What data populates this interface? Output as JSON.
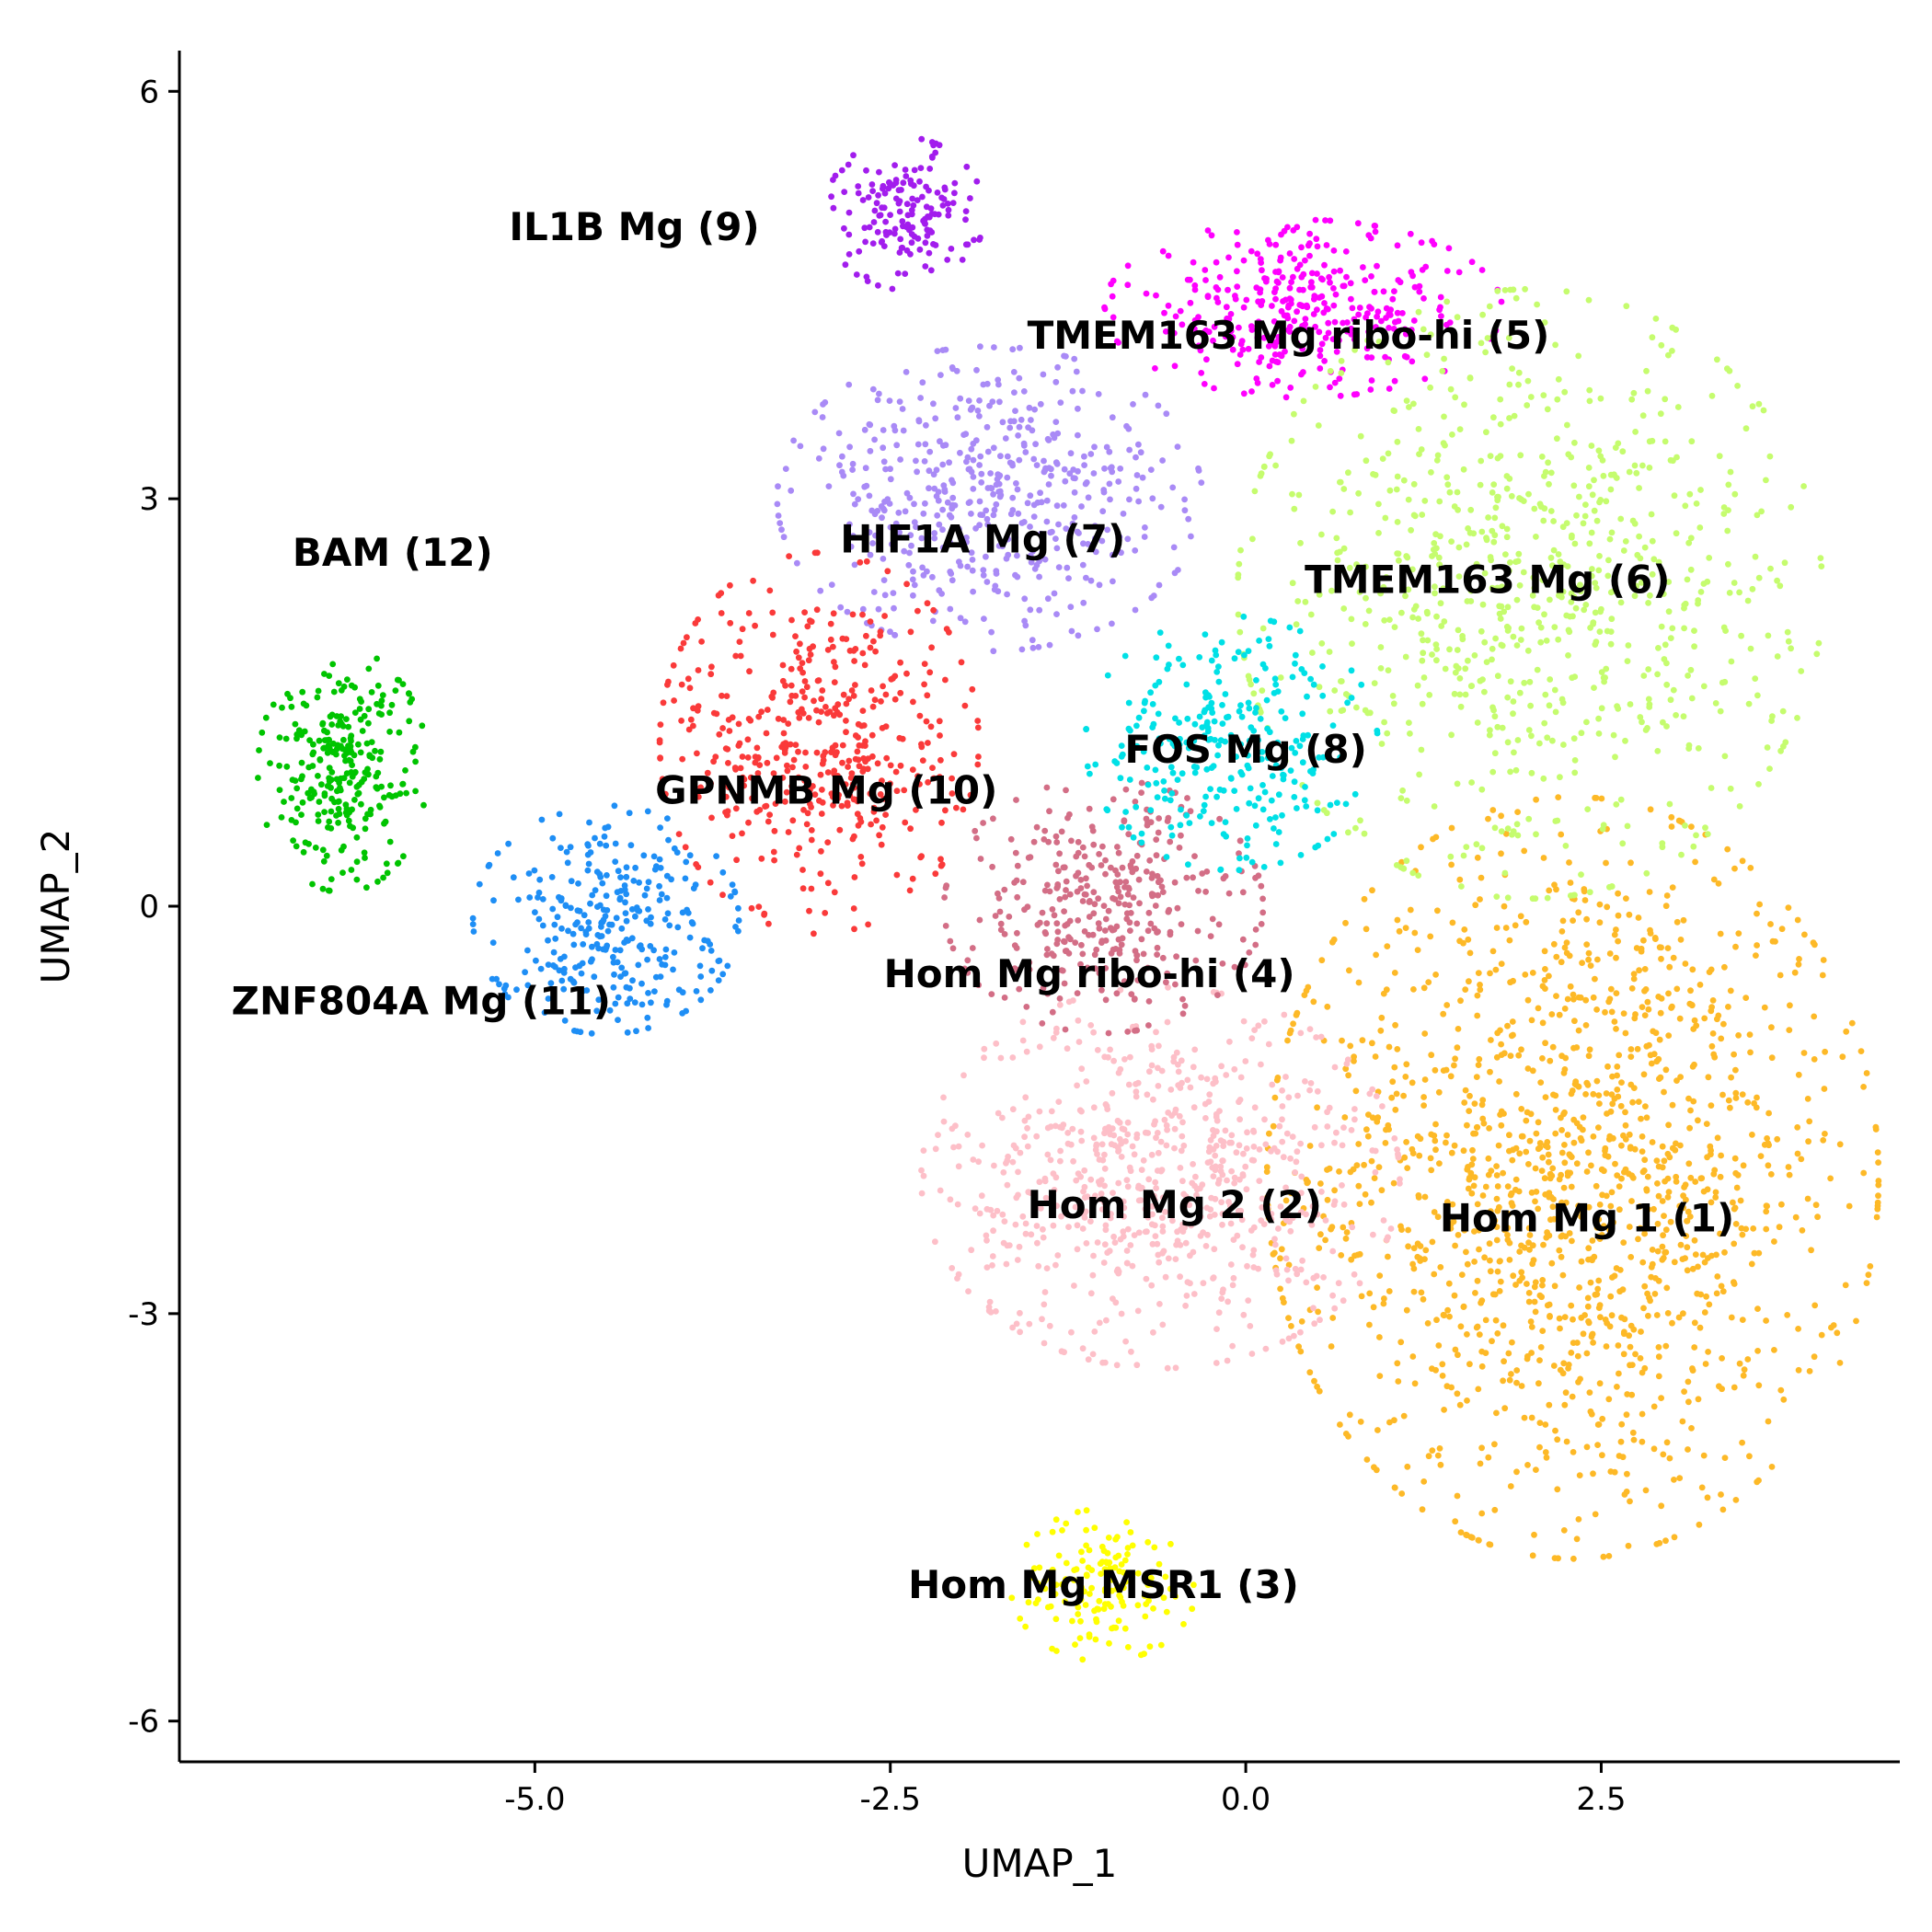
{
  "chart_data": {
    "type": "scatter",
    "xlabel": "UMAP_1",
    "ylabel": "UMAP_2",
    "xlim": [
      -7.5,
      4.6
    ],
    "ylim": [
      -6.3,
      6.3
    ],
    "x_ticks": [
      {
        "value": -5.0,
        "label": "-5.0"
      },
      {
        "value": -2.5,
        "label": "-2.5"
      },
      {
        "value": 0.0,
        "label": "0.0"
      },
      {
        "value": 2.5,
        "label": "2.5"
      }
    ],
    "y_ticks": [
      {
        "value": 6,
        "label": "6"
      },
      {
        "value": 3,
        "label": "3"
      },
      {
        "value": 0,
        "label": "0"
      },
      {
        "value": -3,
        "label": "-3"
      },
      {
        "value": -6,
        "label": "-6"
      }
    ],
    "grid": false,
    "legend": "none",
    "clusters": [
      {
        "label": "Hom Mg 1 (1)",
        "color": "#FDB927",
        "label_x": 2.4,
        "label_y": -2.3,
        "center": [
          2.3,
          -2.0
        ],
        "spread": [
          1.15,
          1.5
        ],
        "n_points": 1400
      },
      {
        "label": "Hom Mg 2 (2)",
        "color": "#FDBFC8",
        "label_x": -0.5,
        "label_y": -2.2,
        "center": [
          -0.6,
          -2.0
        ],
        "spread": [
          0.9,
          0.75
        ],
        "n_points": 700
      },
      {
        "label": "Hom Mg MSR1 (3)",
        "color": "#FFFF00",
        "label_x": -1.0,
        "label_y": -5.0,
        "center": [
          -1.0,
          -5.0
        ],
        "spread": [
          0.35,
          0.3
        ],
        "n_points": 150
      },
      {
        "label": "Hom Mg ribo-hi (4)",
        "color": "#D36E86",
        "label_x": -1.1,
        "label_y": -0.5,
        "center": [
          -1.0,
          0.0
        ],
        "spread": [
          0.6,
          0.5
        ],
        "n_points": 350
      },
      {
        "label": "TMEM163 Mg ribo-hi (5)",
        "color": "#FF00FF",
        "label_x": 0.3,
        "label_y": 4.2,
        "center": [
          0.4,
          4.4
        ],
        "spread": [
          0.75,
          0.35
        ],
        "n_points": 350
      },
      {
        "label": "TMEM163 Mg (6)",
        "color": "#C5FC6E",
        "label_x": 1.7,
        "label_y": 2.4,
        "center": [
          2.0,
          2.3
        ],
        "spread": [
          1.1,
          1.2
        ],
        "n_points": 800
      },
      {
        "label": "HIF1A Mg (7)",
        "color": "#A98AF6",
        "label_x": -1.85,
        "label_y": 2.7,
        "center": [
          -1.8,
          3.0
        ],
        "spread": [
          0.8,
          0.6
        ],
        "n_points": 500
      },
      {
        "label": "FOS Mg (8)",
        "color": "#00E0E6",
        "label_x": 0.0,
        "label_y": 1.15,
        "center": [
          -0.1,
          1.2
        ],
        "spread": [
          0.55,
          0.5
        ],
        "n_points": 280
      },
      {
        "label": "IL1B Mg (9)",
        "color": "#A21DED",
        "label_x": -4.3,
        "label_y": 5.0,
        "center": [
          -2.4,
          5.1
        ],
        "spread": [
          0.3,
          0.3
        ],
        "n_points": 160
      },
      {
        "label": "GPNMB Mg (10)",
        "color": "#FA3A3A",
        "label_x": -2.95,
        "label_y": 0.85,
        "center": [
          -3.0,
          1.2
        ],
        "spread": [
          0.6,
          0.75
        ],
        "n_points": 450
      },
      {
        "label": "ZNF804A Mg (11)",
        "color": "#1E8EF5",
        "label_x": -5.8,
        "label_y": -0.7,
        "center": [
          -4.5,
          -0.1
        ],
        "spread": [
          0.5,
          0.45
        ],
        "n_points": 300
      },
      {
        "label": "BAM (12)",
        "color": "#00C400",
        "label_x": -6.0,
        "label_y": 2.6,
        "center": [
          -6.35,
          1.0
        ],
        "spread": [
          0.32,
          0.48
        ],
        "n_points": 280
      }
    ]
  }
}
